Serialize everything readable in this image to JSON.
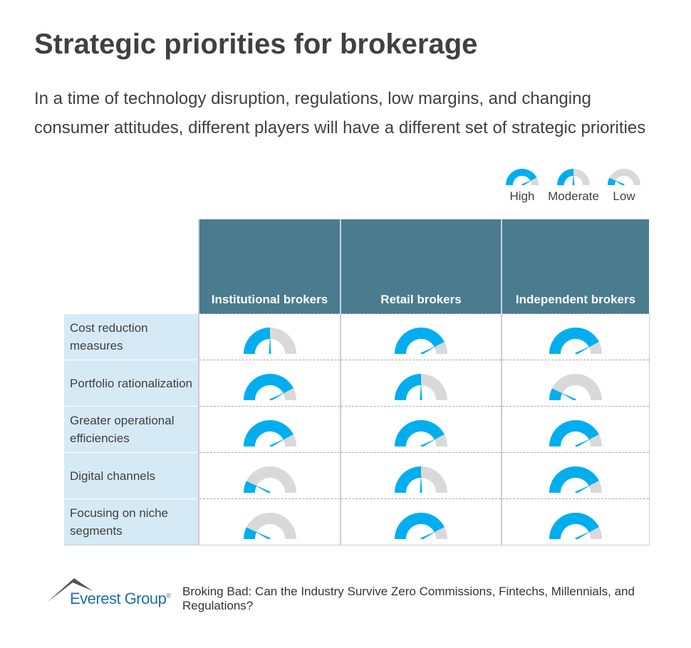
{
  "title": "Strategic priorities for brokerage",
  "subtitle": "In a time of technology disruption, regulations, low margins, and changing consumer attitudes, different players will have a different set of strategic priorities",
  "colors": {
    "gauge_fill": "#00aeef",
    "gauge_empty": "#d9d9d9",
    "header_bg": "#4a7b8f",
    "label_bg": "#d6eaf5"
  },
  "levels": {
    "High": 0.85,
    "Moderate": 0.5,
    "Low": 0.15
  },
  "legend": [
    {
      "label": "High"
    },
    {
      "label": "Moderate"
    },
    {
      "label": "Low"
    }
  ],
  "columns": [
    "Institutional brokers",
    "Retail brokers",
    "Independent brokers"
  ],
  "rows": [
    {
      "label": "Cost reduction measures",
      "values": [
        "Moderate",
        "High",
        "High"
      ]
    },
    {
      "label": "Portfolio rationalization",
      "values": [
        "High",
        "Moderate",
        "Low"
      ]
    },
    {
      "label": "Greater operational efficiencies",
      "values": [
        "High",
        "High",
        "High"
      ]
    },
    {
      "label": "Digital channels",
      "values": [
        "Low",
        "Moderate",
        "High"
      ]
    },
    {
      "label": "Focusing on niche segments",
      "values": [
        "Low",
        "High",
        "High"
      ]
    }
  ],
  "footer": {
    "brand": "Everest Group",
    "registered": "®",
    "source": "Broking Bad: Can the Industry Survive Zero Commissions, Fintechs, Millennials, and Regulations?"
  }
}
